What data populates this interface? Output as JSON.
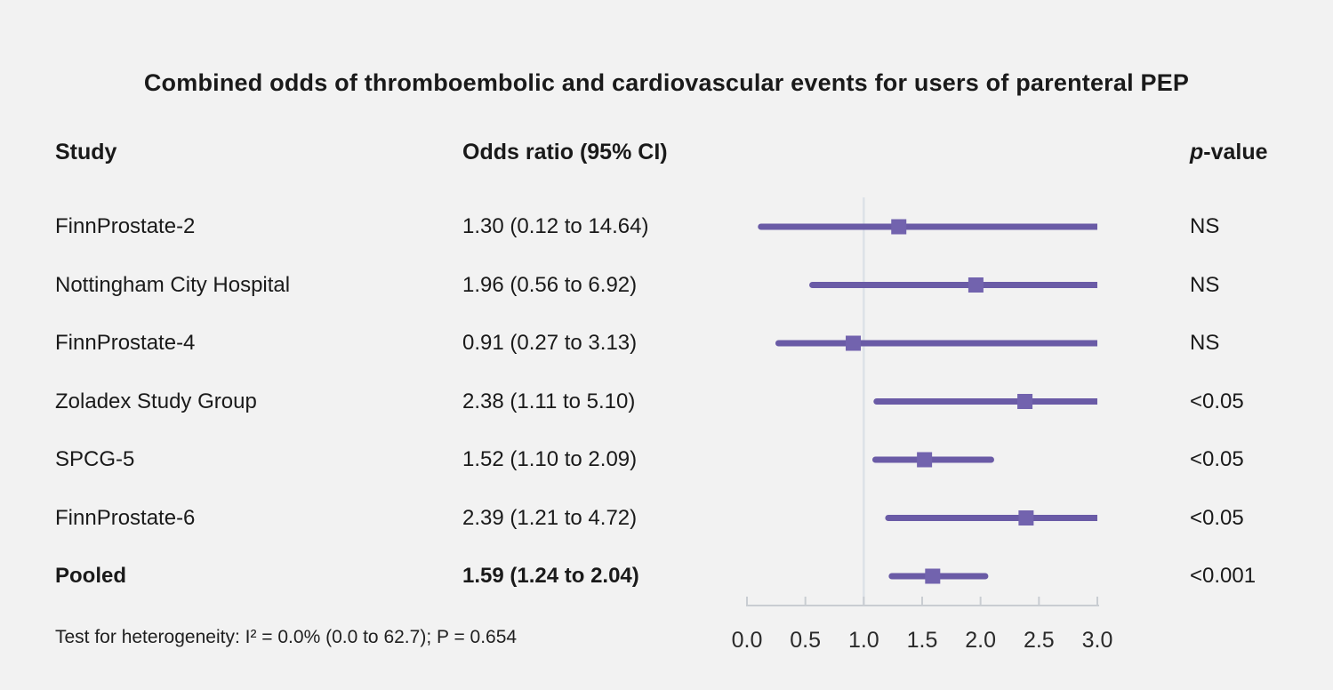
{
  "title": "Combined odds of thromboembolic and cardiovascular events for users of parenteral PEP",
  "columns": {
    "study": "Study",
    "odds_ratio": "Odds ratio (95% CI)",
    "p_italic": "p",
    "p_rest": "-value"
  },
  "footer": {
    "heterogeneity": "Test for heterogeneity: I² = 0.0% (0.0 to 62.7); P = 0.654"
  },
  "colors": {
    "background": "#f2f2f2",
    "text": "#1a1a1a",
    "ci_line": "#6a5ba6",
    "marker": "#7263ae",
    "reference_line": "#dde2e8",
    "axis": "#c9cdd2"
  },
  "chart_data": {
    "type": "forest",
    "title": "Combined odds of thromboembolic and cardiovascular events for users of parenteral PEP",
    "xlabel": "",
    "xlim": [
      0.0,
      3.0
    ],
    "x_ticks": [
      "0.0",
      "0.5",
      "1.0",
      "1.5",
      "2.0",
      "2.5",
      "3.0"
    ],
    "reference_line": 1.0,
    "grid": false,
    "rows": [
      {
        "study": "FinnProstate-2",
        "or": 1.3,
        "ci_low": 0.12,
        "ci_high": 14.64,
        "or_label": "1.30 (0.12 to 14.64)",
        "p_value": "NS",
        "bold": false
      },
      {
        "study": "Nottingham City Hospital",
        "or": 1.96,
        "ci_low": 0.56,
        "ci_high": 6.92,
        "or_label": "1.96 (0.56 to 6.92)",
        "p_value": "NS",
        "bold": false
      },
      {
        "study": "FinnProstate-4",
        "or": 0.91,
        "ci_low": 0.27,
        "ci_high": 3.13,
        "or_label": "0.91 (0.27 to 3.13)",
        "p_value": "NS",
        "bold": false
      },
      {
        "study": "Zoladex Study Group",
        "or": 2.38,
        "ci_low": 1.11,
        "ci_high": 5.1,
        "or_label": "2.38 (1.11 to 5.10)",
        "p_value": "<0.05",
        "bold": false
      },
      {
        "study": "SPCG-5",
        "or": 1.52,
        "ci_low": 1.1,
        "ci_high": 2.09,
        "or_label": "1.52 (1.10 to 2.09)",
        "p_value": "<0.05",
        "bold": false
      },
      {
        "study": "FinnProstate-6",
        "or": 2.39,
        "ci_low": 1.21,
        "ci_high": 4.72,
        "or_label": "2.39 (1.21 to 4.72)",
        "p_value": "<0.05",
        "bold": false
      },
      {
        "study": "Pooled",
        "or": 1.59,
        "ci_low": 1.24,
        "ci_high": 2.04,
        "or_label": "1.59 (1.24 to 2.04)",
        "p_value": "<0.001",
        "bold": true
      }
    ]
  }
}
